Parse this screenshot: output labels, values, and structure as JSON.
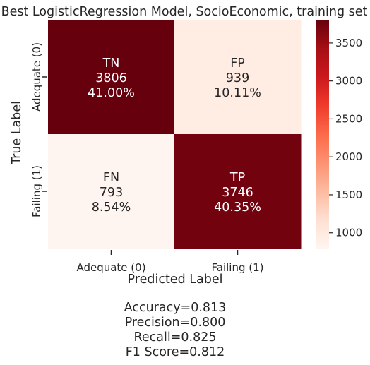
{
  "chart_data": {
    "type": "heatmap",
    "title": "Best LogisticRegression Model, SocioEconomic, training set",
    "xlabel": "Predicted Label",
    "ylabel": "True Label",
    "x_categories": [
      "Adequate (0)",
      "Failing (1)"
    ],
    "y_categories": [
      "Adequate (0)",
      "Failing (1)"
    ],
    "cells": [
      [
        {
          "name": "TN",
          "value": 3806,
          "percent": "41.00%"
        },
        {
          "name": "FP",
          "value": 939,
          "percent": "10.11%"
        }
      ],
      [
        {
          "name": "FN",
          "value": 793,
          "percent": "8.54%"
        },
        {
          "name": "TP",
          "value": 3746,
          "percent": "40.35%"
        }
      ]
    ],
    "colormap": "Reds",
    "colorbar": {
      "range": [
        793,
        3806
      ],
      "ticks": [
        1000,
        1500,
        2000,
        2500,
        3000,
        3500
      ]
    }
  },
  "metrics": [
    "Accuracy=0.813",
    "Precision=0.800",
    "Recall=0.825",
    "F1 Score=0.812"
  ]
}
